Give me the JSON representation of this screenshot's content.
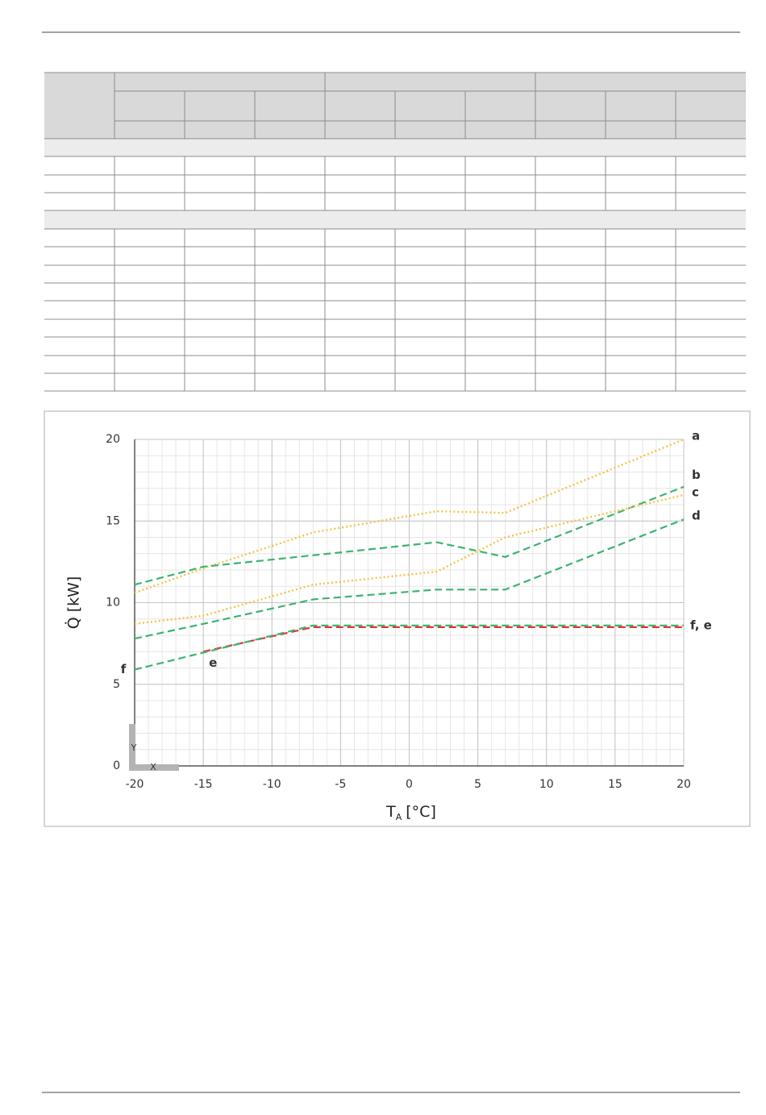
{
  "chart_data": {
    "type": "line",
    "y_label": "Q̇ [kW]",
    "x_label": {
      "symbol": "T",
      "subscript": "A",
      "unit": "[°C]"
    },
    "xlim": [
      -20,
      20
    ],
    "xticks": [
      -20,
      -15,
      -10,
      -5,
      0,
      5,
      10,
      15,
      20
    ],
    "ylim": [
      0,
      20
    ],
    "yticks": [
      0,
      5,
      10,
      15,
      20
    ],
    "grid": true,
    "minor_grid": true,
    "series": [
      {
        "name": "a",
        "color": "#f5c342",
        "dash": "dotted",
        "x": [
          -20,
          -15,
          -7,
          2,
          7,
          20
        ],
        "values": [
          10.6,
          12.1,
          14.3,
          15.6,
          15.5,
          20.0
        ]
      },
      {
        "name": "b",
        "color": "#3cb371",
        "dash": "dashed",
        "x": [
          -20,
          -15,
          -7,
          2,
          7,
          20
        ],
        "values": [
          11.1,
          12.2,
          12.9,
          13.7,
          12.8,
          17.1
        ]
      },
      {
        "name": "c",
        "color": "#f5c342",
        "dash": "dotted",
        "x": [
          -20,
          -15,
          -7,
          2,
          7,
          20
        ],
        "values": [
          8.7,
          9.2,
          11.1,
          11.9,
          14.0,
          16.6
        ]
      },
      {
        "name": "d",
        "color": "#3cb371",
        "dash": "dashed",
        "x": [
          -20,
          -15,
          -7,
          2,
          7,
          20
        ],
        "values": [
          7.8,
          8.7,
          10.2,
          10.8,
          10.8,
          15.1
        ]
      },
      {
        "name": "e",
        "color": "#e8312f",
        "dash": "dashed",
        "x": [
          -15,
          -7,
          20
        ],
        "values": [
          7.0,
          8.5,
          8.5
        ]
      },
      {
        "name": "f",
        "color": "#3cb371",
        "dash": "dashed",
        "x": [
          -20,
          -7,
          20
        ],
        "values": [
          5.9,
          8.6,
          8.6
        ]
      }
    ],
    "annotations": [
      "f, e"
    ],
    "axis_icon": {
      "y": "Y",
      "x": "X"
    }
  }
}
